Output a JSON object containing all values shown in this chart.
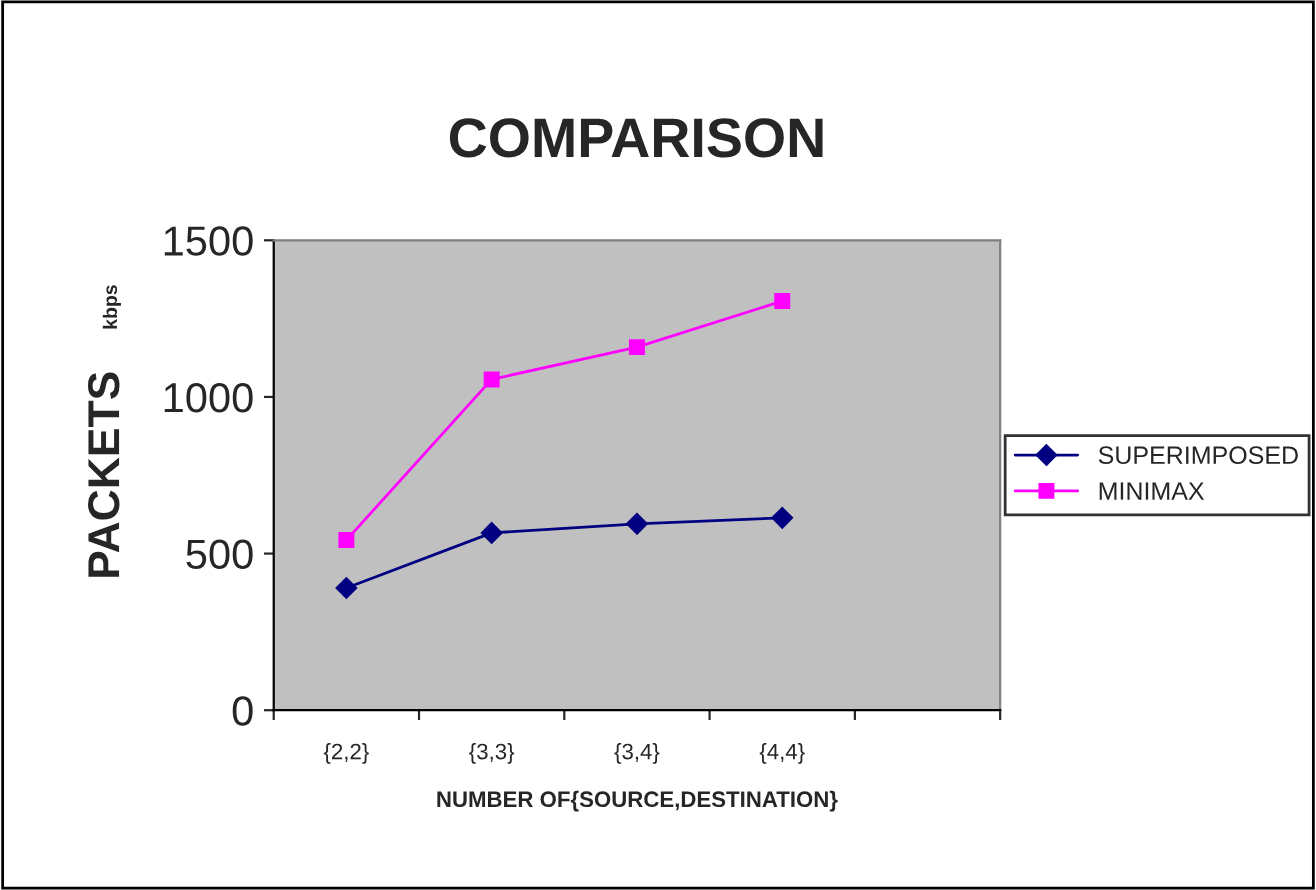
{
  "chart_data": {
    "type": "line",
    "title": "COMPARISON",
    "xlabel": "NUMBER OF{SOURCE,DESTINATION}",
    "ylabel": "PACKETS",
    "annotations": [
      "kbps"
    ],
    "categories": [
      "{2,2}",
      "{3,3}",
      "{3,4}",
      "{4,4}",
      null
    ],
    "series": [
      {
        "name": "SUPERIMPOSED",
        "color": "#000080",
        "marker": "diamond",
        "values": [
          390,
          566,
          595,
          614,
          null
        ]
      },
      {
        "name": "MINIMAX",
        "color": "#ff00ff",
        "marker": "square",
        "values": [
          543,
          1056,
          1159,
          1306,
          null
        ]
      }
    ],
    "ylim": [
      0,
      1500
    ],
    "yticks": [
      0,
      500,
      1000,
      1500
    ],
    "grid": false,
    "legend": "right"
  }
}
